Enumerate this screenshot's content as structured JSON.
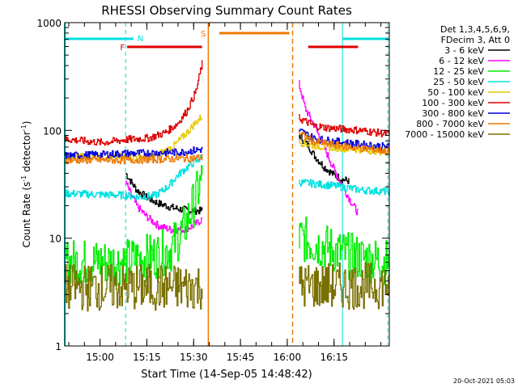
{
  "chart_data": {
    "type": "line",
    "title": "RHESSI Observing Summary Count Rates",
    "xlabel": "Start Time (14-Sep-05 14:48:42)",
    "ylabel_main": "Count Rate (s",
    "ylabel_sup1": "-1",
    "ylabel_mid": " detector",
    "ylabel_sup2": "-1",
    "ylabel_end": ")",
    "yscale": "log",
    "ylim": [
      1,
      1000
    ],
    "xlim_minutes": [
      0,
      104
    ],
    "x_start": "14:48:42",
    "y_ticks": [
      {
        "value": 1,
        "label": "1"
      },
      {
        "value": 10,
        "label": "10"
      },
      {
        "value": 100,
        "label": "100"
      },
      {
        "value": 1000,
        "label": "1000"
      }
    ],
    "x_ticks": [
      {
        "minute": 11.3,
        "label": "15:00"
      },
      {
        "minute": 26.3,
        "label": "15:15"
      },
      {
        "minute": 41.3,
        "label": "15:30"
      },
      {
        "minute": 56.3,
        "label": "15:45"
      },
      {
        "minute": 71.3,
        "label": "16:00"
      },
      {
        "minute": 86.3,
        "label": "16:15"
      }
    ],
    "legend_header": [
      "Det 1,3,4,5,6,9,",
      "FDecim 3, Att 0"
    ],
    "legend_position": "right",
    "timestamp": "20-Oct-2021 05:03",
    "flags": {
      "night": {
        "label": "N",
        "color": "#00e0e0"
      },
      "flare": {
        "label": "F",
        "color": "#dd0000"
      },
      "saa": {
        "label": "S",
        "color": "#ee7a00"
      },
      "night_bars": [
        [
          0,
          22
        ],
        [
          89,
          104
        ]
      ],
      "flare_bars": [
        [
          20,
          44
        ],
        [
          78,
          94
        ]
      ],
      "saa_bars": [
        [
          49.5,
          72
        ]
      ],
      "night_lines": [
        0,
        19.5,
        89,
        103.5
      ],
      "saa_lines": [
        46,
        73
      ]
    },
    "series": [
      {
        "name": "3 - 6 keV",
        "color": "#000000",
        "seg1": [
          [
            19.5,
            40
          ],
          [
            21,
            34
          ],
          [
            23,
            28
          ],
          [
            26,
            24
          ],
          [
            30,
            21
          ],
          [
            35,
            19
          ],
          [
            40,
            18
          ],
          [
            44,
            18
          ]
        ],
        "seg2": [
          [
            75,
            90
          ],
          [
            78,
            72
          ],
          [
            80,
            58
          ],
          [
            83,
            46
          ],
          [
            86,
            39
          ],
          [
            89,
            35
          ],
          [
            91,
            34
          ]
        ]
      },
      {
        "name": "6 - 12 keV",
        "color": "#ff00ff",
        "seg1": [
          [
            19.5,
            33
          ],
          [
            21,
            26
          ],
          [
            23,
            20
          ],
          [
            26,
            16
          ],
          [
            30,
            13
          ],
          [
            34,
            12
          ],
          [
            38,
            12
          ],
          [
            41,
            13
          ],
          [
            44,
            15
          ]
        ],
        "seg2": [
          [
            75,
            270
          ],
          [
            77,
            160
          ],
          [
            80,
            110
          ],
          [
            83,
            70
          ],
          [
            86,
            45
          ],
          [
            89,
            30
          ],
          [
            92,
            21
          ],
          [
            94,
            17
          ]
        ]
      },
      {
        "name": "12 - 25 keV",
        "color": "#00ee00",
        "seg1": [
          [
            0,
            6
          ],
          [
            19.5,
            6
          ],
          [
            24,
            6.5
          ],
          [
            30,
            7
          ],
          [
            34,
            8
          ],
          [
            38,
            12
          ],
          [
            41,
            20
          ],
          [
            44,
            36
          ]
        ],
        "seg2": [
          [
            75,
            10
          ],
          [
            80,
            9
          ],
          [
            85,
            8
          ],
          [
            90,
            7
          ],
          [
            95,
            6.5
          ],
          [
            104,
            6
          ]
        ]
      },
      {
        "name": "25 - 50 keV",
        "color": "#00e0e0",
        "seg1": [
          [
            0,
            26
          ],
          [
            19.5,
            25
          ],
          [
            24,
            24
          ],
          [
            29,
            25
          ],
          [
            33,
            30
          ],
          [
            36,
            38
          ],
          [
            39,
            45
          ],
          [
            41,
            50
          ],
          [
            44,
            56
          ]
        ],
        "seg2": [
          [
            75,
            33
          ],
          [
            85,
            31
          ],
          [
            95,
            28
          ],
          [
            104,
            27
          ]
        ]
      },
      {
        "name": "50 - 100 keV",
        "color": "#e6c800",
        "seg1": [
          [
            0,
            57
          ],
          [
            19.5,
            57
          ],
          [
            27,
            57
          ],
          [
            31,
            62
          ],
          [
            35,
            72
          ],
          [
            39,
            95
          ],
          [
            42,
            120
          ],
          [
            44,
            135
          ]
        ],
        "seg2": [
          [
            75,
            78
          ],
          [
            80,
            72
          ],
          [
            90,
            68
          ],
          [
            96,
            66
          ],
          [
            104,
            63
          ]
        ]
      },
      {
        "name": "100 - 300 keV",
        "color": "#dd0000",
        "seg1": [
          [
            0,
            83
          ],
          [
            12,
            77
          ],
          [
            19.5,
            82
          ],
          [
            27,
            85
          ],
          [
            32,
            95
          ],
          [
            36,
            115
          ],
          [
            39,
            150
          ],
          [
            42,
            230
          ],
          [
            44,
            420
          ]
        ],
        "seg2": [
          [
            75,
            130
          ],
          [
            80,
            110
          ],
          [
            85,
            105
          ],
          [
            95,
            100
          ],
          [
            104,
            92
          ]
        ]
      },
      {
        "name": "300 - 800 keV",
        "color": "#0000dd",
        "seg1": [
          [
            0,
            58
          ],
          [
            19.5,
            61
          ],
          [
            30,
            62
          ],
          [
            38,
            63
          ],
          [
            44,
            67
          ]
        ],
        "seg2": [
          [
            75,
            100
          ],
          [
            80,
            84
          ],
          [
            85,
            80
          ],
          [
            95,
            74
          ],
          [
            104,
            70
          ]
        ]
      },
      {
        "name": "800 - 7000 keV",
        "color": "#ee7a00",
        "seg1": [
          [
            0,
            53
          ],
          [
            19.5,
            53
          ],
          [
            30,
            54
          ],
          [
            38,
            55
          ],
          [
            44,
            56
          ]
        ],
        "seg2": [
          [
            75,
            95
          ],
          [
            80,
            78
          ],
          [
            85,
            74
          ],
          [
            95,
            68
          ],
          [
            104,
            64
          ]
        ]
      },
      {
        "name": "7000 - 15000 keV",
        "color": "#7a7000",
        "seg1": [
          [
            0,
            3.5
          ],
          [
            19.5,
            3.5
          ],
          [
            30,
            3.5
          ],
          [
            38,
            3.5
          ],
          [
            44,
            3.6
          ]
        ],
        "seg2": [
          [
            75,
            3.6
          ],
          [
            85,
            3.6
          ],
          [
            95,
            3.6
          ],
          [
            104,
            3.7
          ]
        ]
      }
    ]
  }
}
